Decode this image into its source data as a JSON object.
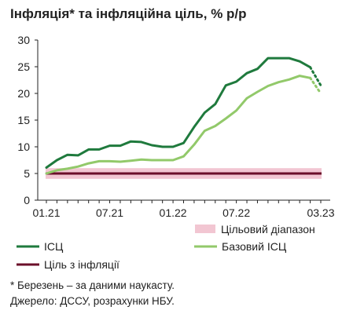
{
  "title": "Інфляція* та інфляційна ціль, % р/р",
  "chart_data": {
    "type": "line",
    "title": "Інфляція* та інфляційна ціль, % р/р",
    "xlabel": "",
    "ylabel": "",
    "x_tick_labels": [
      "01.21",
      "07.21",
      "01.22",
      "07.22",
      "03.23"
    ],
    "ylim": [
      0,
      30
    ],
    "y_ticks": [
      0,
      5,
      10,
      15,
      20,
      25,
      30
    ],
    "x_months": [
      "01.21",
      "02.21",
      "03.21",
      "04.21",
      "05.21",
      "06.21",
      "07.21",
      "08.21",
      "09.21",
      "10.21",
      "11.21",
      "12.21",
      "01.22",
      "02.22",
      "03.22",
      "04.22",
      "05.22",
      "06.22",
      "07.22",
      "08.22",
      "09.22",
      "10.22",
      "11.22",
      "12.22",
      "01.23",
      "02.23",
      "03.23"
    ],
    "series": [
      {
        "name": "ІСЦ",
        "color": "#1f7a3d",
        "values": [
          6.1,
          7.5,
          8.5,
          8.4,
          9.5,
          9.5,
          10.2,
          10.2,
          11.0,
          10.9,
          10.3,
          10.0,
          10.0,
          10.7,
          13.7,
          16.4,
          18.0,
          21.5,
          22.2,
          23.8,
          24.6,
          26.6,
          26.6,
          26.6,
          26.0,
          24.9,
          null
        ],
        "nowcast": {
          "from_month": "02.23",
          "to_month": "03.23",
          "values": [
            24.9,
            21.5
          ]
        }
      },
      {
        "name": "Базовий ІСЦ",
        "color": "#92c96a",
        "values": [
          5.0,
          5.6,
          5.9,
          6.3,
          6.9,
          7.3,
          7.3,
          7.2,
          7.4,
          7.6,
          7.5,
          7.5,
          7.5,
          8.2,
          10.4,
          13.0,
          13.9,
          15.3,
          16.8,
          19.1,
          20.3,
          21.4,
          22.1,
          22.6,
          23.3,
          22.9,
          null
        ],
        "nowcast": {
          "from_month": "02.23",
          "to_month": "03.23",
          "values": [
            22.9,
            20.0
          ]
        }
      }
    ],
    "target": {
      "name": "Ціль з інфляції",
      "value": 5,
      "color": "#6b0f2a"
    },
    "target_range": {
      "name": "Цільовий діапазон",
      "min": 4,
      "max": 6,
      "color": "#f2c6d2"
    },
    "grid": false,
    "legend_position": "bottom"
  },
  "notes": {
    "line1": "* Березень – за даними наукасту.",
    "line2": "Джерело: ДССУ, розрахунки НБУ."
  }
}
